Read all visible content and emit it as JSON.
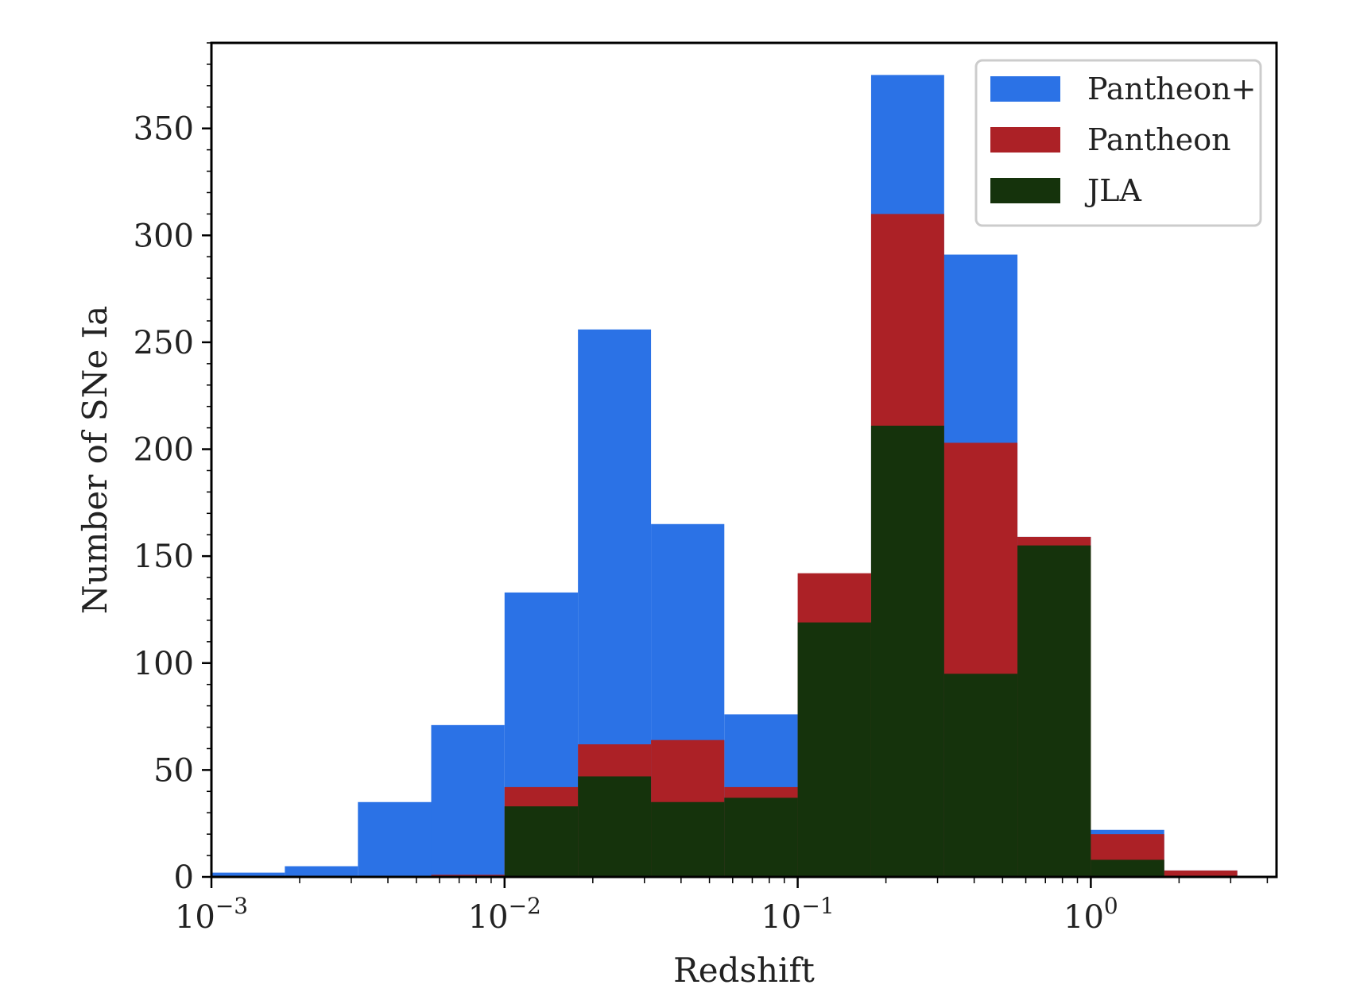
{
  "chart_data": {
    "type": "bar",
    "xlabel": "Redshift",
    "ylabel": "Number of SNe Ia",
    "x_scale": "log",
    "xlim": [
      0.001,
      4.3
    ],
    "ylim": [
      0,
      390
    ],
    "x_ticks": [
      {
        "value": 0.001,
        "base": "10",
        "exp": "−3"
      },
      {
        "value": 0.01,
        "base": "10",
        "exp": "−2"
      },
      {
        "value": 0.1,
        "base": "10",
        "exp": "−1"
      },
      {
        "value": 1,
        "base": "10",
        "exp": "0"
      }
    ],
    "y_ticks": [
      0,
      50,
      100,
      150,
      200,
      250,
      300,
      350
    ],
    "bin_edges": [
      0.001,
      0.00178,
      0.00316,
      0.00562,
      0.01,
      0.0178,
      0.0316,
      0.0562,
      0.1,
      0.178,
      0.316,
      0.562,
      1.0,
      1.78,
      3.16
    ],
    "grid": false,
    "legend_position": "top-right",
    "series": [
      {
        "name": "Pantheon+",
        "color": "#2b72e6",
        "values": [
          2,
          5,
          35,
          71,
          133,
          256,
          165,
          76,
          42,
          375,
          291,
          159,
          22,
          3
        ]
      },
      {
        "name": "Pantheon",
        "color": "#ac2126",
        "values": [
          0,
          0,
          0,
          1,
          42,
          62,
          64,
          42,
          142,
          310,
          203,
          159,
          20,
          3
        ]
      },
      {
        "name": "JLA",
        "color": "#15330c",
        "values": [
          0,
          0,
          0,
          0,
          33,
          47,
          35,
          37,
          119,
          211,
          95,
          155,
          8,
          0
        ]
      }
    ]
  }
}
